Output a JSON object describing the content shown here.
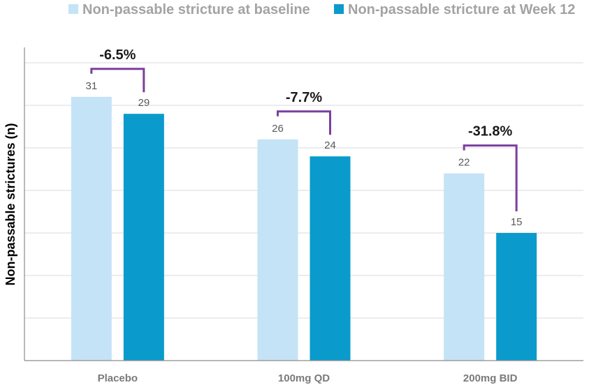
{
  "chart_data": {
    "type": "bar",
    "categories": [
      "Placebo",
      "100mg QD",
      "200mg BID"
    ],
    "series": [
      {
        "name": "Non-passable stricture at baseline",
        "values": [
          31,
          26,
          22
        ]
      },
      {
        "name": "Non-passable stricture at Week 12",
        "values": [
          29,
          24,
          15
        ]
      }
    ],
    "ylabel": "Non-passable strictures (n)",
    "xlabel": "",
    "ylim": [
      0,
      35
    ],
    "grid": true,
    "legend_position": "top",
    "annotations": [
      "-6.5%",
      "-7.7%",
      "-31.8%"
    ],
    "colors": {
      "baseline": "#c5e3f6",
      "week12": "#0a9bcc",
      "bracket": "#7b3f9e"
    }
  }
}
